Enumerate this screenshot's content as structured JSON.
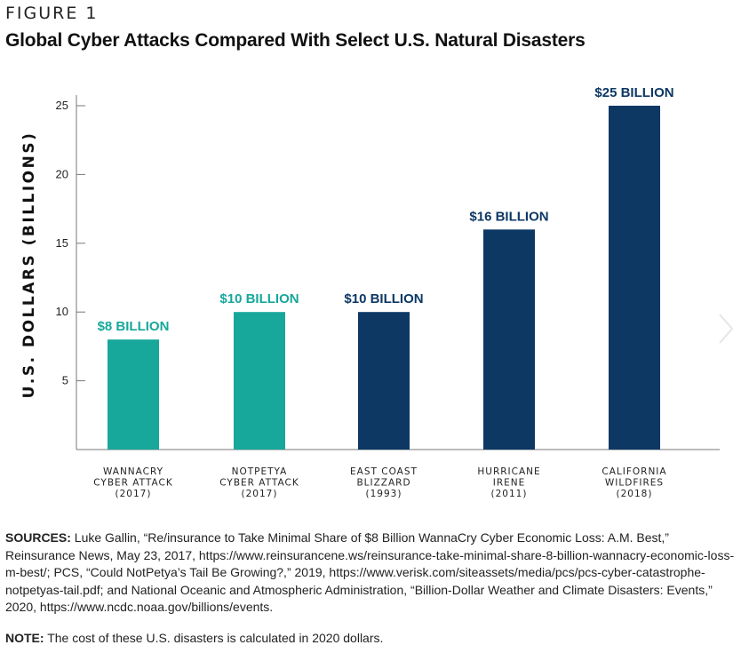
{
  "figure_label": "FIGURE 1",
  "chart_data": {
    "type": "bar",
    "title": "Global Cyber Attacks Compared With Select U.S. Natural Disasters",
    "xlabel": "",
    "ylabel": "U.S. DOLLARS (BILLIONS)",
    "ylim": [
      0,
      25
    ],
    "yticks": [
      5,
      10,
      15,
      20,
      25
    ],
    "grid": false,
    "categories": [
      [
        "WANNACRY",
        "CYBER ATTACK",
        "(2017)"
      ],
      [
        "NOTPETYA",
        "CYBER ATTACK",
        "(2017)"
      ],
      [
        "EAST COAST",
        "BLIZZARD",
        "(1993)"
      ],
      [
        "HURRICANE",
        "IRENE",
        "(2011)"
      ],
      [
        "CALIFORNIA",
        "WILDFIRES",
        "(2018)"
      ]
    ],
    "values": [
      8,
      10,
      10,
      16,
      25
    ],
    "data_labels": [
      "$8 BILLION",
      "$10 BILLION",
      "$10 BILLION",
      "$16 BILLION",
      "$25 BILLION"
    ],
    "bar_colors": [
      "#17a79b",
      "#17a79b",
      "#0d3864",
      "#0d3864",
      "#0d3864"
    ],
    "label_colors": [
      "#17a79b",
      "#17a79b",
      "#0d3864",
      "#0d3864",
      "#0d3864"
    ]
  },
  "sources": {
    "label": "SOURCES:",
    "text": " Luke Gallin, “Re/insurance to Take Minimal Share of $8 Billion WannaCry Cyber Economic Loss: A.M. Best,” Reinsurance News, May 23, 2017, https://www.reinsurancene.ws/reinsurance-take-minimal-share-8-billion-wannacry-economic-loss-m-best/; PCS, “Could NotPetya’s Tail Be Growing?,” 2019, https://www.verisk.com/siteassets/media/pcs/pcs-cyber-catastrophe-notpetyas-tail.pdf; and National Oceanic and Atmospheric Administration, “Billion-Dollar Weather and Climate Disasters: Events,” 2020, https://www.ncdc.noaa.gov/billions/events."
  },
  "note": {
    "label": "NOTE:",
    "text": " The cost of these U.S. disasters is calculated in 2020 dollars."
  },
  "nav": {
    "next_icon": "chevron-right-icon"
  }
}
